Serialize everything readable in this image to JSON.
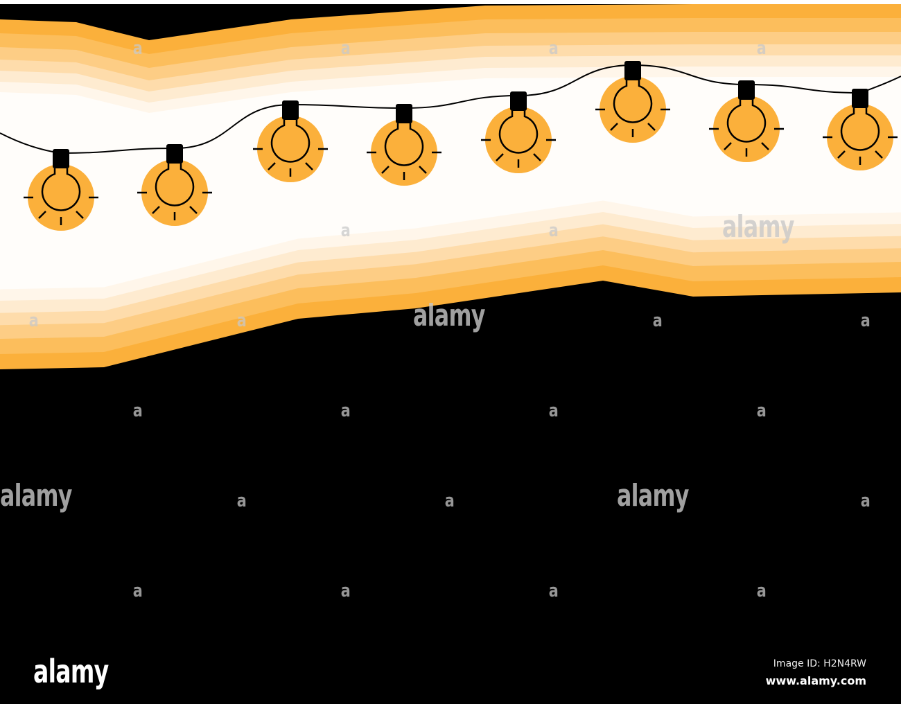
{
  "colors": {
    "background": "#000000",
    "bands": [
      "#fbb03b",
      "#fcbe5c",
      "#fdcd85",
      "#fedcab",
      "#feebd0",
      "#fff6ea",
      "#fffdfa"
    ],
    "bulb": "#fbb03b",
    "outline": "#000000"
  },
  "bulb_count": 8,
  "watermark": {
    "letter": "a",
    "word": "alamy"
  },
  "footer": {
    "logo": "alamy",
    "image_id": "Image ID: H2N4RW",
    "site": "www.alamy.com"
  }
}
